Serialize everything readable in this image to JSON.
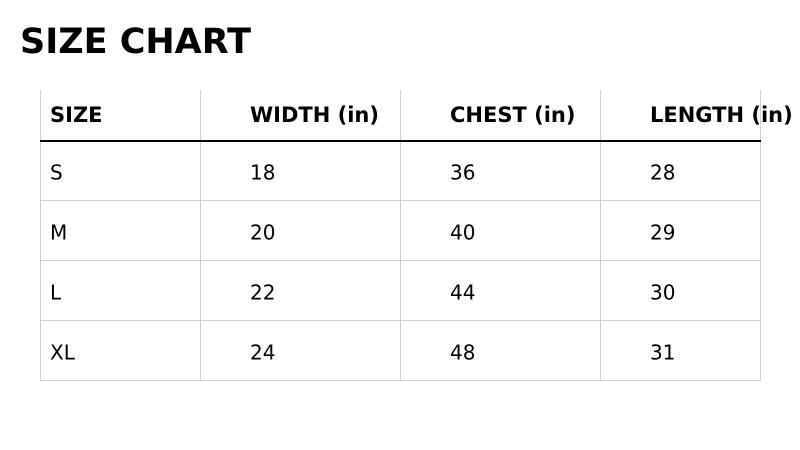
{
  "title": "SIZE CHART",
  "table": {
    "header": [
      "SIZE",
      "WIDTH (in)",
      "CHEST (in)",
      "LENGTH (in)"
    ],
    "rows": [
      [
        "S",
        18,
        36,
        28
      ],
      [
        "M",
        20,
        40,
        29
      ],
      [
        "L",
        22,
        44,
        30
      ],
      [
        "XL",
        24,
        48,
        31
      ]
    ]
  }
}
